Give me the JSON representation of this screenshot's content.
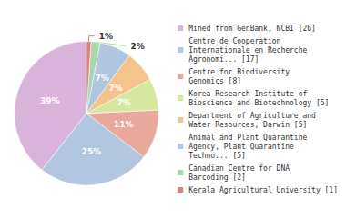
{
  "chart_data": {
    "type": "pie",
    "categories": [
      "Mined from GenBank, NCBI [26]",
      "Centre de Cooperation\nInternationale en Recherche\nAgronomi... [17]",
      "Centre for Biodiversity\nGenomics [8]",
      "Korea Research Institute of\nBioscience and Biotechnology [5]",
      "Department of Agriculture and\nWater Resources, Darwin [5]",
      "Animal and Plant Quarantine\nAgency, Plant Quarantine\nTechno... [5]",
      "Canadian Centre for DNA\nBarcoding [2]",
      "Kerala Agricultural University [1]"
    ],
    "values": [
      39,
      25,
      11,
      7,
      7,
      7,
      2,
      1
    ],
    "value_labels": [
      "39%",
      "25%",
      "11%",
      "7%",
      "7%",
      "7%",
      "2%",
      "1%"
    ],
    "colors": [
      "#d9b3d9",
      "#b3c6e0",
      "#e8a89c",
      "#d6e8a0",
      "#f5c48c",
      "#aec6e0",
      "#a8d8a8",
      "#e08080"
    ],
    "data_labels": true,
    "legend": "right"
  }
}
